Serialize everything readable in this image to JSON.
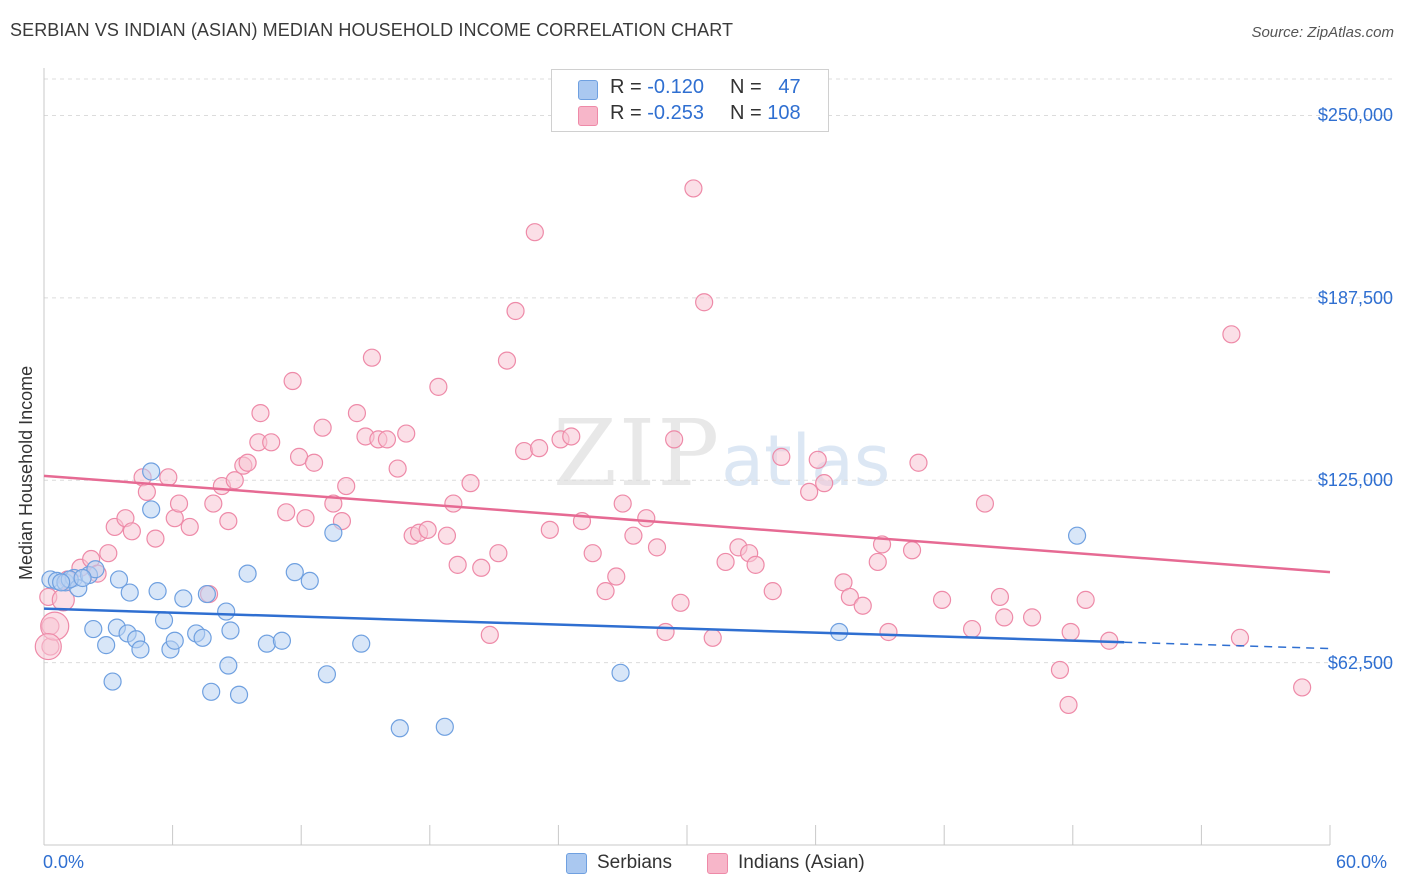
{
  "header": {
    "title": "SERBIAN VS INDIAN (ASIAN) MEDIAN HOUSEHOLD INCOME CORRELATION CHART",
    "source": "Source: ZipAtlas.com"
  },
  "legend_top": {
    "rows": [
      {
        "r_label": "R = ",
        "r_value": "-0.120",
        "n_label": "N = ",
        "n_value": "47",
        "color": "#aac8f0"
      },
      {
        "r_label": "R = ",
        "r_value": "-0.253",
        "n_label": "N = ",
        "n_value": "108",
        "color": "#f7b6c9"
      }
    ]
  },
  "legend_bottom": [
    {
      "label": "Serbians",
      "color": "#aac8f0"
    },
    {
      "label": "Indians (Asian)",
      "color": "#f7b6c9"
    }
  ],
  "watermark": {
    "zip": "ZIP",
    "atlas": "atlas"
  },
  "chart_data": {
    "type": "scatter",
    "xlabel": "",
    "ylabel": "Median Household Income",
    "xlim": [
      0,
      60
    ],
    "ylim": [
      0,
      262500
    ],
    "x_tick_labels": [
      "0.0%",
      "60.0%"
    ],
    "y_ticks": [
      62500,
      125000,
      187500,
      250000
    ],
    "y_tick_labels": [
      "$62,500",
      "$125,000",
      "$187,500",
      "$250,000"
    ],
    "grid": true,
    "colors": {
      "serbians": "#6fa0e0",
      "indians": "#ee8aa8",
      "serbians_line": "#2f6fd1",
      "indians_line": "#e66a93"
    },
    "series": [
      {
        "name": "Serbians",
        "trend": {
          "x": [
            0,
            50.4
          ],
          "y": [
            81000,
            69500
          ],
          "dashed_to": [
            60,
            67300
          ]
        },
        "points": [
          [
            0.3,
            91000
          ],
          [
            0.6,
            90500
          ],
          [
            1.0,
            90000
          ],
          [
            1.4,
            91500
          ],
          [
            1.6,
            88000
          ],
          [
            2.1,
            92500
          ],
          [
            2.4,
            94500
          ],
          [
            3.5,
            91000
          ],
          [
            4.0,
            86500
          ],
          [
            5.0,
            128000
          ],
          [
            5.0,
            115000
          ],
          [
            5.3,
            87000
          ],
          [
            6.5,
            84500
          ],
          [
            7.6,
            86000
          ],
          [
            2.3,
            74000
          ],
          [
            2.9,
            68500
          ],
          [
            3.2,
            56000
          ],
          [
            3.4,
            74500
          ],
          [
            3.9,
            72500
          ],
          [
            4.3,
            70500
          ],
          [
            4.5,
            67000
          ],
          [
            5.6,
            77000
          ],
          [
            5.9,
            67000
          ],
          [
            6.1,
            70000
          ],
          [
            7.1,
            72500
          ],
          [
            7.4,
            71000
          ],
          [
            8.5,
            80000
          ],
          [
            8.6,
            61500
          ],
          [
            8.7,
            73500
          ],
          [
            7.8,
            52500
          ],
          [
            9.1,
            51500
          ],
          [
            9.5,
            93000
          ],
          [
            10.4,
            69000
          ],
          [
            11.1,
            70000
          ],
          [
            11.7,
            93500
          ],
          [
            12.4,
            90500
          ],
          [
            13.2,
            58500
          ],
          [
            13.5,
            107000
          ],
          [
            14.8,
            69000
          ],
          [
            16.6,
            40000
          ],
          [
            18.7,
            40500
          ],
          [
            26.9,
            59000
          ],
          [
            37.1,
            73000
          ],
          [
            48.2,
            106000
          ],
          [
            1.2,
            91000
          ],
          [
            0.8,
            90000
          ],
          [
            1.8,
            91500
          ]
        ]
      },
      {
        "name": "Indians (Asian)",
        "trend": {
          "x": [
            0,
            60
          ],
          "y": [
            126500,
            93500
          ]
        },
        "points": [
          [
            0.2,
            85000
          ],
          [
            0.3,
            75000
          ],
          [
            0.3,
            68000
          ],
          [
            1.1,
            91000
          ],
          [
            1.7,
            95000
          ],
          [
            2.2,
            98000
          ],
          [
            2.5,
            93000
          ],
          [
            3.0,
            100000
          ],
          [
            3.3,
            109000
          ],
          [
            3.8,
            112000
          ],
          [
            4.1,
            107500
          ],
          [
            4.6,
            126000
          ],
          [
            4.8,
            121000
          ],
          [
            5.2,
            105000
          ],
          [
            5.8,
            126000
          ],
          [
            6.1,
            112000
          ],
          [
            6.3,
            117000
          ],
          [
            6.8,
            109000
          ],
          [
            7.7,
            86000
          ],
          [
            7.9,
            117000
          ],
          [
            8.3,
            123000
          ],
          [
            8.6,
            111000
          ],
          [
            8.9,
            125000
          ],
          [
            9.3,
            130000
          ],
          [
            9.5,
            131000
          ],
          [
            10.0,
            138000
          ],
          [
            10.1,
            148000
          ],
          [
            10.6,
            138000
          ],
          [
            11.3,
            114000
          ],
          [
            11.6,
            159000
          ],
          [
            11.9,
            133000
          ],
          [
            12.2,
            112000
          ],
          [
            12.6,
            131000
          ],
          [
            13.0,
            143000
          ],
          [
            13.5,
            117000
          ],
          [
            13.9,
            111000
          ],
          [
            14.1,
            123000
          ],
          [
            14.6,
            148000
          ],
          [
            15.0,
            140000
          ],
          [
            15.3,
            167000
          ],
          [
            15.6,
            139000
          ],
          [
            16.0,
            139000
          ],
          [
            16.5,
            129000
          ],
          [
            16.9,
            141000
          ],
          [
            17.2,
            106000
          ],
          [
            17.5,
            107000
          ],
          [
            17.9,
            108000
          ],
          [
            18.4,
            157000
          ],
          [
            18.8,
            106000
          ],
          [
            19.1,
            117000
          ],
          [
            19.3,
            96000
          ],
          [
            19.9,
            124000
          ],
          [
            20.4,
            95000
          ],
          [
            20.8,
            72000
          ],
          [
            21.2,
            100000
          ],
          [
            21.6,
            166000
          ],
          [
            22.0,
            183000
          ],
          [
            22.4,
            135000
          ],
          [
            22.9,
            210000
          ],
          [
            23.1,
            136000
          ],
          [
            23.6,
            108000
          ],
          [
            24.1,
            139000
          ],
          [
            24.6,
            140000
          ],
          [
            25.1,
            111000
          ],
          [
            25.6,
            100000
          ],
          [
            26.2,
            87000
          ],
          [
            26.7,
            92000
          ],
          [
            27.0,
            117000
          ],
          [
            27.5,
            106000
          ],
          [
            28.1,
            112000
          ],
          [
            28.6,
            102000
          ],
          [
            29.0,
            73000
          ],
          [
            29.4,
            139000
          ],
          [
            29.7,
            83000
          ],
          [
            30.3,
            225000
          ],
          [
            30.8,
            186000
          ],
          [
            31.2,
            71000
          ],
          [
            31.8,
            97000
          ],
          [
            32.4,
            102000
          ],
          [
            32.9,
            100000
          ],
          [
            33.2,
            96000
          ],
          [
            34.0,
            87000
          ],
          [
            34.4,
            133000
          ],
          [
            35.7,
            121000
          ],
          [
            36.1,
            132000
          ],
          [
            36.4,
            124000
          ],
          [
            37.3,
            90000
          ],
          [
            37.6,
            85000
          ],
          [
            38.2,
            82000
          ],
          [
            39.1,
            103000
          ],
          [
            38.9,
            97000
          ],
          [
            39.4,
            73000
          ],
          [
            40.5,
            101000
          ],
          [
            40.8,
            131000
          ],
          [
            41.9,
            84000
          ],
          [
            43.3,
            74000
          ],
          [
            43.9,
            117000
          ],
          [
            44.6,
            85000
          ],
          [
            44.8,
            78000
          ],
          [
            46.1,
            78000
          ],
          [
            47.4,
            60000
          ],
          [
            47.8,
            48000
          ],
          [
            48.6,
            84000
          ],
          [
            47.9,
            73000
          ],
          [
            49.7,
            70000
          ],
          [
            55.4,
            175000
          ],
          [
            55.8,
            71000
          ],
          [
            58.7,
            54000
          ]
        ]
      }
    ]
  }
}
